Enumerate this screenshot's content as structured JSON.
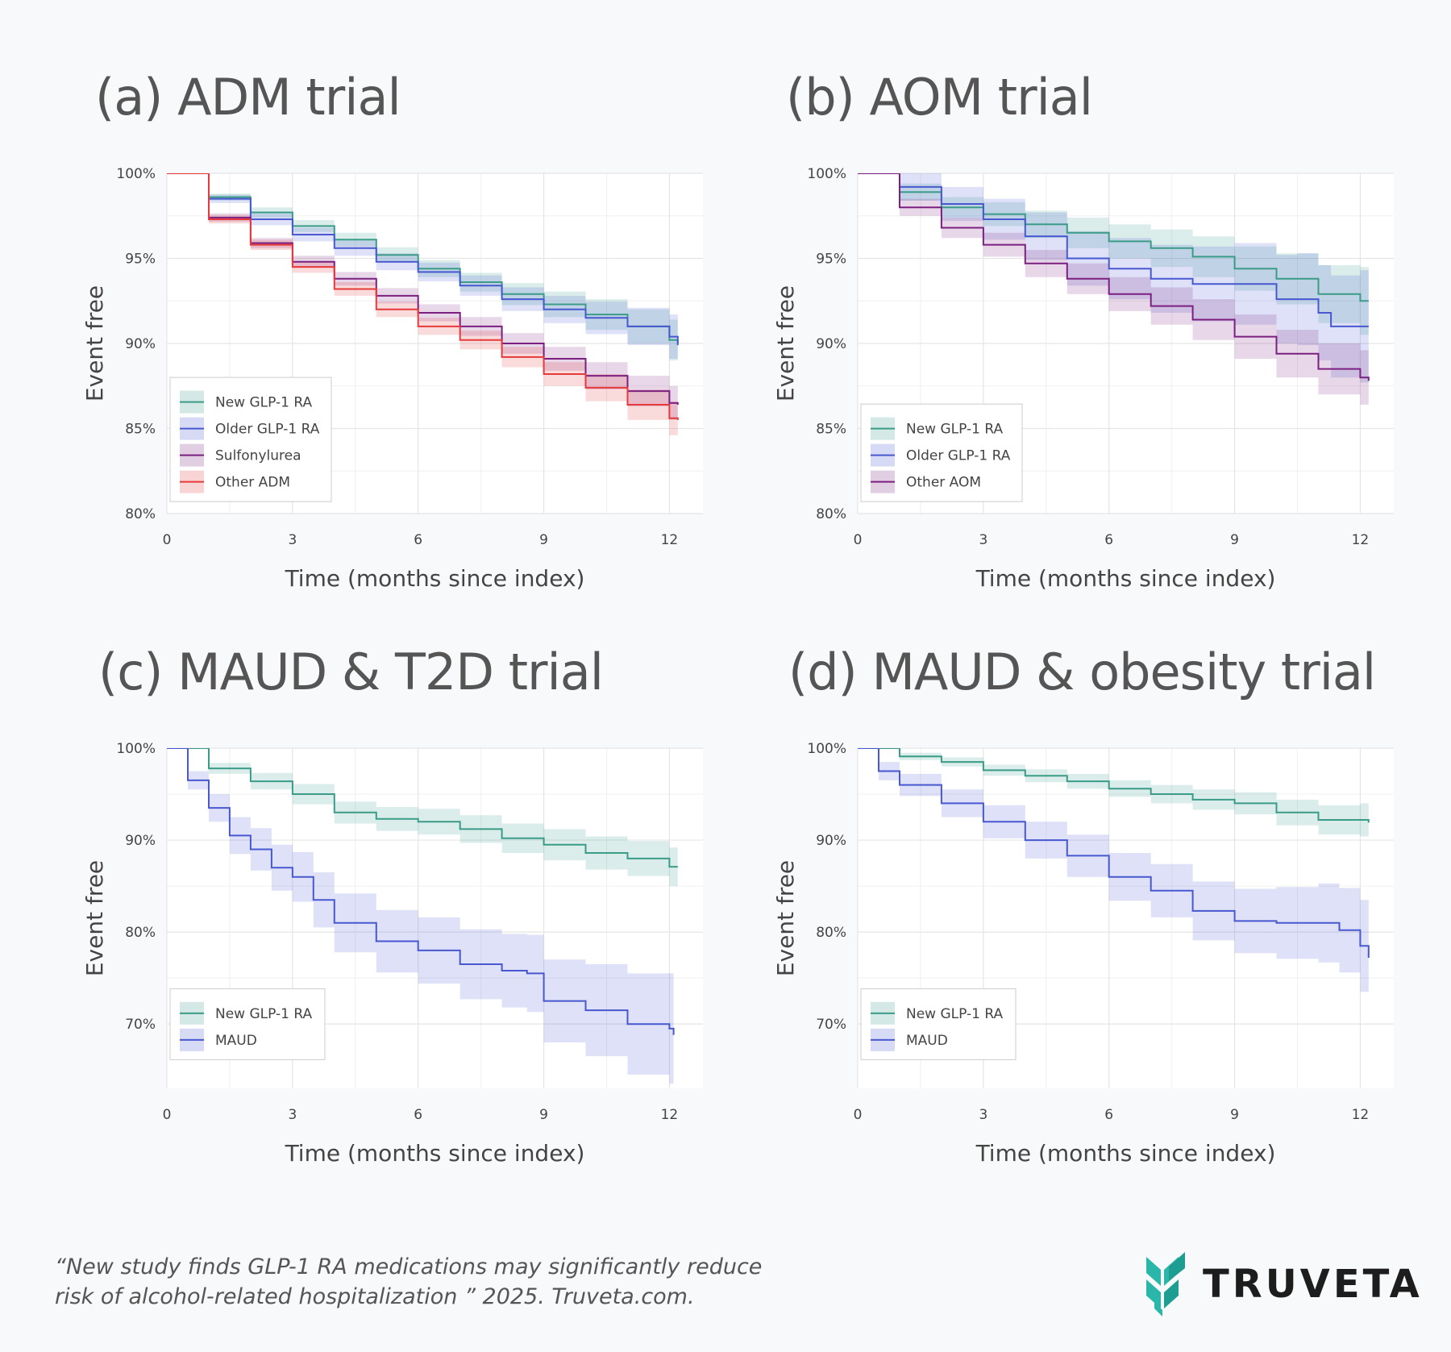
{
  "colors": {
    "new_glp1": "#3a9c88",
    "older_glp1": "#4758d0",
    "sulfonylurea": "#7b1f80",
    "other_adm": "#e5393a",
    "grid": "#e5e5e5"
  },
  "citation": {
    "line1": "“New study finds GLP-1 RA medications may significantly reduce",
    "line2": "risk of alcohol-related hospitalization ” 2025. Truveta.com."
  },
  "brand": {
    "name": "TRUVETA",
    "logo_icon": "truveta-chevron-icon"
  },
  "chart_data": [
    {
      "type": "line",
      "subtype": "kaplan-meier",
      "title": "(a) ADM trial",
      "xlabel": "Time (months since index)",
      "ylabel": "Event free",
      "xlim": [
        0,
        12.8
      ],
      "ylim": [
        80,
        100
      ],
      "xticks": [
        0,
        3,
        6,
        9,
        12
      ],
      "xtick_labels": [
        "0",
        "3",
        "6",
        "9",
        "12"
      ],
      "yticks": [
        80,
        85,
        90,
        95,
        100
      ],
      "ytick_labels": [
        "80%",
        "85%",
        "90%",
        "95%",
        "100%"
      ],
      "legend_position": "bottom-left",
      "series": [
        {
          "name": "New GLP-1 RA",
          "color_key": "new_glp1",
          "x": [
            0,
            1,
            2,
            3,
            4,
            5,
            6,
            7,
            8,
            9,
            10,
            11,
            12,
            12.2
          ],
          "y": [
            100,
            98.6,
            97.7,
            96.9,
            96.1,
            95.2,
            94.4,
            93.6,
            92.9,
            92.3,
            91.7,
            91.0,
            90.2,
            90.0
          ],
          "ci_width": [
            0,
            0.2,
            0.3,
            0.35,
            0.4,
            0.45,
            0.5,
            0.55,
            0.65,
            0.75,
            0.9,
            1.0,
            1.2,
            1.3
          ]
        },
        {
          "name": "Older GLP-1 RA",
          "color_key": "older_glp1",
          "x": [
            0,
            1,
            2,
            3,
            4,
            5,
            6,
            7,
            8,
            9,
            10,
            11,
            12,
            12.2
          ],
          "y": [
            100,
            98.5,
            97.3,
            96.4,
            95.6,
            94.8,
            94.2,
            93.4,
            92.6,
            92.0,
            91.5,
            91.0,
            90.4,
            89.9
          ],
          "ci_width": [
            0,
            0.25,
            0.35,
            0.4,
            0.45,
            0.5,
            0.55,
            0.6,
            0.7,
            0.8,
            0.95,
            1.1,
            1.3,
            1.4
          ]
        },
        {
          "name": "Sulfonylurea",
          "color_key": "sulfonylurea",
          "x": [
            0,
            1,
            2,
            3,
            4,
            5,
            6,
            7,
            8,
            9,
            10,
            11,
            12,
            12.2
          ],
          "y": [
            100,
            97.4,
            95.9,
            94.8,
            93.8,
            92.8,
            91.8,
            91.0,
            90.0,
            89.1,
            88.1,
            87.2,
            86.5,
            86.4
          ],
          "ci_width": [
            0,
            0.25,
            0.3,
            0.35,
            0.4,
            0.45,
            0.5,
            0.55,
            0.6,
            0.7,
            0.8,
            0.9,
            1.0,
            1.1
          ]
        },
        {
          "name": "Other ADM",
          "color_key": "other_adm",
          "x": [
            0,
            1,
            2,
            3,
            4,
            5,
            6,
            7,
            8,
            9,
            10,
            11,
            12,
            12.2
          ],
          "y": [
            100,
            97.3,
            95.8,
            94.5,
            93.2,
            92.0,
            91.0,
            90.2,
            89.2,
            88.2,
            87.4,
            86.4,
            85.6,
            85.5
          ],
          "ci_width": [
            0,
            0.25,
            0.3,
            0.35,
            0.4,
            0.45,
            0.5,
            0.55,
            0.6,
            0.7,
            0.8,
            0.9,
            1.0,
            1.1
          ]
        }
      ]
    },
    {
      "type": "line",
      "subtype": "kaplan-meier",
      "title": "(b) AOM trial",
      "xlabel": "Time (months since index)",
      "ylabel": "Event free",
      "xlim": [
        0,
        12.8
      ],
      "ylim": [
        80,
        100
      ],
      "xticks": [
        0,
        3,
        6,
        9,
        12
      ],
      "xtick_labels": [
        "0",
        "3",
        "6",
        "9",
        "12"
      ],
      "yticks": [
        80,
        85,
        90,
        95,
        100
      ],
      "ytick_labels": [
        "80%",
        "85%",
        "90%",
        "95%",
        "100%"
      ],
      "legend_position": "bottom-left",
      "series": [
        {
          "name": "New GLP-1 RA",
          "color_key": "new_glp1",
          "x": [
            0,
            1,
            2,
            3,
            4,
            5,
            6,
            7,
            8,
            9,
            10,
            11,
            12,
            12.2
          ],
          "y": [
            100,
            98.9,
            98.0,
            97.6,
            97.0,
            96.5,
            96.0,
            95.6,
            95.1,
            94.4,
            93.8,
            92.9,
            92.5,
            92.5
          ],
          "ci_width": [
            0,
            0.5,
            0.6,
            0.7,
            0.8,
            0.9,
            1.0,
            1.1,
            1.2,
            1.3,
            1.5,
            1.7,
            2.0,
            2.0
          ]
        },
        {
          "name": "Older GLP-1 RA",
          "color_key": "older_glp1",
          "x": [
            0,
            1,
            2,
            3,
            4,
            5,
            6,
            7,
            8,
            9,
            10,
            10.5,
            11,
            11.3,
            12,
            12.2
          ],
          "y": [
            100,
            99.2,
            98.2,
            97.3,
            96.3,
            95.0,
            94.4,
            93.8,
            93.5,
            93.5,
            92.6,
            92.6,
            91.8,
            91.0,
            91.0,
            91.0
          ],
          "ci_width": [
            0,
            0.8,
            1.0,
            1.2,
            1.4,
            1.6,
            1.8,
            2.0,
            2.2,
            2.4,
            2.6,
            2.7,
            2.8,
            3.0,
            3.3,
            3.4
          ]
        },
        {
          "name": "Other AOM",
          "color_key": "sulfonylurea",
          "x": [
            0,
            1,
            2,
            3,
            4,
            5,
            6,
            7,
            8,
            9,
            10,
            11,
            12,
            12.2
          ],
          "y": [
            100,
            98.0,
            96.8,
            95.8,
            94.7,
            93.8,
            92.9,
            92.2,
            91.4,
            90.4,
            89.4,
            88.5,
            88.0,
            87.8
          ],
          "ci_width": [
            0,
            0.5,
            0.6,
            0.7,
            0.8,
            0.9,
            1.0,
            1.1,
            1.2,
            1.3,
            1.4,
            1.5,
            1.6,
            1.6
          ]
        }
      ]
    },
    {
      "type": "line",
      "subtype": "kaplan-meier",
      "title": "(c) MAUD & T2D trial",
      "xlabel": "Time (months since index)",
      "ylabel": "Event free",
      "xlim": [
        0,
        12.8
      ],
      "ylim": [
        63,
        100
      ],
      "xticks": [
        0,
        3,
        6,
        9,
        12
      ],
      "xtick_labels": [
        "0",
        "3",
        "6",
        "9",
        "12"
      ],
      "yticks": [
        70,
        80,
        90,
        100
      ],
      "ytick_labels": [
        "70%",
        "80%",
        "90%",
        "100%"
      ],
      "legend_position": "bottom-left",
      "series": [
        {
          "name": "New GLP-1 RA",
          "color_key": "new_glp1",
          "x": [
            0,
            1,
            2,
            3,
            4,
            5,
            6,
            7,
            8,
            9,
            10,
            11,
            12,
            12.2
          ],
          "y": [
            100,
            97.8,
            96.4,
            95.0,
            93.0,
            92.3,
            92.0,
            91.2,
            90.2,
            89.5,
            88.6,
            88.0,
            87.1,
            87.1
          ],
          "ci_width": [
            0,
            0.6,
            0.9,
            1.1,
            1.2,
            1.3,
            1.4,
            1.5,
            1.6,
            1.7,
            1.8,
            1.9,
            2.1,
            2.1
          ]
        },
        {
          "name": "MAUD",
          "color_key": "older_glp1",
          "x": [
            0,
            0.5,
            1,
            1.5,
            2,
            2.5,
            3,
            3.5,
            4,
            5,
            6,
            7,
            8,
            8.6,
            9,
            10,
            11,
            12,
            12.1
          ],
          "y": [
            100,
            96.5,
            93.5,
            90.5,
            89.0,
            87.0,
            86.0,
            83.5,
            81.0,
            79.0,
            78.0,
            76.5,
            75.8,
            75.5,
            72.5,
            71.5,
            70.0,
            69.5,
            68.8
          ],
          "ci_width": [
            0,
            1.0,
            1.5,
            2.0,
            2.3,
            2.5,
            2.7,
            3.0,
            3.2,
            3.4,
            3.6,
            3.8,
            4.0,
            4.2,
            4.5,
            5.0,
            5.5,
            6.0,
            6.5
          ]
        }
      ]
    },
    {
      "type": "line",
      "subtype": "kaplan-meier",
      "title": "(d) MAUD & obesity trial",
      "xlabel": "Time (months since index)",
      "ylabel": "Event free",
      "xlim": [
        0,
        12.8
      ],
      "ylim": [
        63,
        100
      ],
      "xticks": [
        0,
        3,
        6,
        9,
        12
      ],
      "xtick_labels": [
        "0",
        "3",
        "6",
        "9",
        "12"
      ],
      "yticks": [
        70,
        80,
        90,
        100
      ],
      "ytick_labels": [
        "70%",
        "80%",
        "90%",
        "100%"
      ],
      "legend_position": "bottom-left",
      "series": [
        {
          "name": "New GLP-1 RA",
          "color_key": "new_glp1",
          "x": [
            0,
            1,
            2,
            3,
            4,
            5,
            6,
            7,
            8,
            9,
            10,
            11,
            12,
            12.2
          ],
          "y": [
            100,
            99.1,
            98.5,
            97.6,
            97.0,
            96.4,
            95.6,
            95.0,
            94.4,
            94.0,
            93.0,
            92.2,
            92.2,
            91.9
          ],
          "ci_width": [
            0,
            0.4,
            0.5,
            0.6,
            0.7,
            0.8,
            0.9,
            1.0,
            1.1,
            1.2,
            1.4,
            1.6,
            1.8,
            1.8
          ]
        },
        {
          "name": "MAUD",
          "color_key": "older_glp1",
          "x": [
            0,
            0.5,
            1,
            2,
            3,
            4,
            5,
            6,
            7,
            8,
            9,
            10,
            11,
            11.5,
            12,
            12.2
          ],
          "y": [
            100,
            97.5,
            96.0,
            94.0,
            92.0,
            90.0,
            88.3,
            86.0,
            84.5,
            82.3,
            81.2,
            81.0,
            81.0,
            80.2,
            78.5,
            77.2
          ],
          "ci_width": [
            0,
            1.0,
            1.2,
            1.5,
            1.8,
            2.0,
            2.3,
            2.6,
            2.9,
            3.2,
            3.5,
            3.9,
            4.3,
            4.6,
            5.0,
            5.5
          ]
        }
      ]
    }
  ]
}
